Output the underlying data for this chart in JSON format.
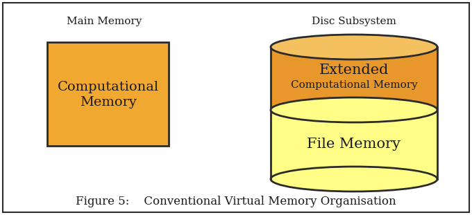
{
  "bg_color": "#ffffff",
  "border_color": "#2a2a2a",
  "title": "Figure 5:    Conventional Virtual Memory Organisation",
  "title_fontsize": 12,
  "main_memory_label": "Main Memory",
  "disc_label": "Disc Subsystem",
  "rect_label_line1": "Computational",
  "rect_label_line2": "Memory",
  "rect_color": "#F0A830",
  "rect_border": "#2a2a2a",
  "cyl_orange_color": "#E8972A",
  "cyl_top_ellipse_color": "#F5C060",
  "cyl_top_label_line1": "Extended",
  "cyl_top_label_line2": "Computational Memory",
  "cyl_bottom_color": "#FFFF88",
  "cyl_bottom_label": "File Memory",
  "label_fontsize": 11,
  "text_color": "#1a1a1a",
  "fig_width": 6.8,
  "fig_height": 3.11,
  "dpi": 100
}
